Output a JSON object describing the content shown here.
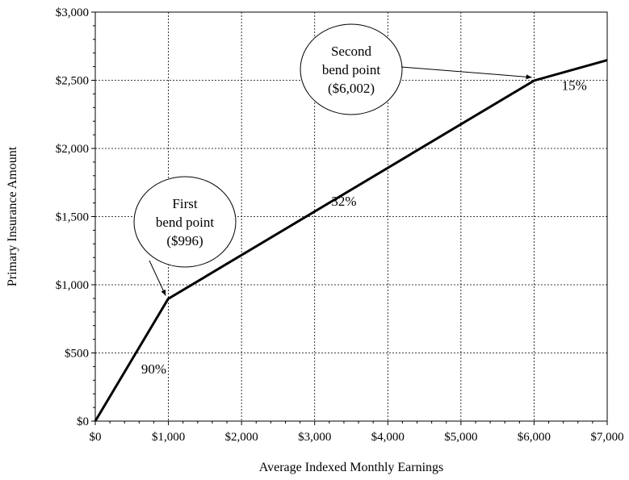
{
  "chart_data": {
    "type": "line",
    "xlabel": "Average Indexed Monthly Earnings",
    "ylabel": "Primary Insurance Amount",
    "xlim": [
      0,
      7000
    ],
    "ylim": [
      0,
      3000
    ],
    "grid": true,
    "x_ticks": [
      0,
      1000,
      2000,
      3000,
      4000,
      5000,
      6000,
      7000
    ],
    "x_tick_labels": [
      "$0",
      "$1,000",
      "$2,000",
      "$3,000",
      "$4,000",
      "$5,000",
      "$6,000",
      "$7,000"
    ],
    "y_ticks": [
      0,
      500,
      1000,
      1500,
      2000,
      2500,
      3000
    ],
    "y_tick_labels": [
      "$0",
      "$500",
      "$1,000",
      "$1,500",
      "$2,000",
      "$2,500",
      "$3,000"
    ],
    "series": [
      {
        "x": [
          0,
          996,
          6002,
          7000
        ],
        "y": [
          0,
          896.4,
          2498.0,
          2647.7
        ]
      }
    ],
    "rate_labels": [
      {
        "text": "90%",
        "x": 800,
        "y": 350
      },
      {
        "text": "32%",
        "x": 3400,
        "y": 1580
      },
      {
        "text": "15%",
        "x": 6550,
        "y": 2430
      }
    ],
    "callouts": [
      {
        "lines": [
          "First",
          "bend point",
          "($996)"
        ],
        "points_to": [
          996,
          896.4
        ]
      },
      {
        "lines": [
          "Second",
          "bend point",
          "($6,002)"
        ],
        "points_to": [
          6002,
          2498.0
        ]
      }
    ]
  }
}
